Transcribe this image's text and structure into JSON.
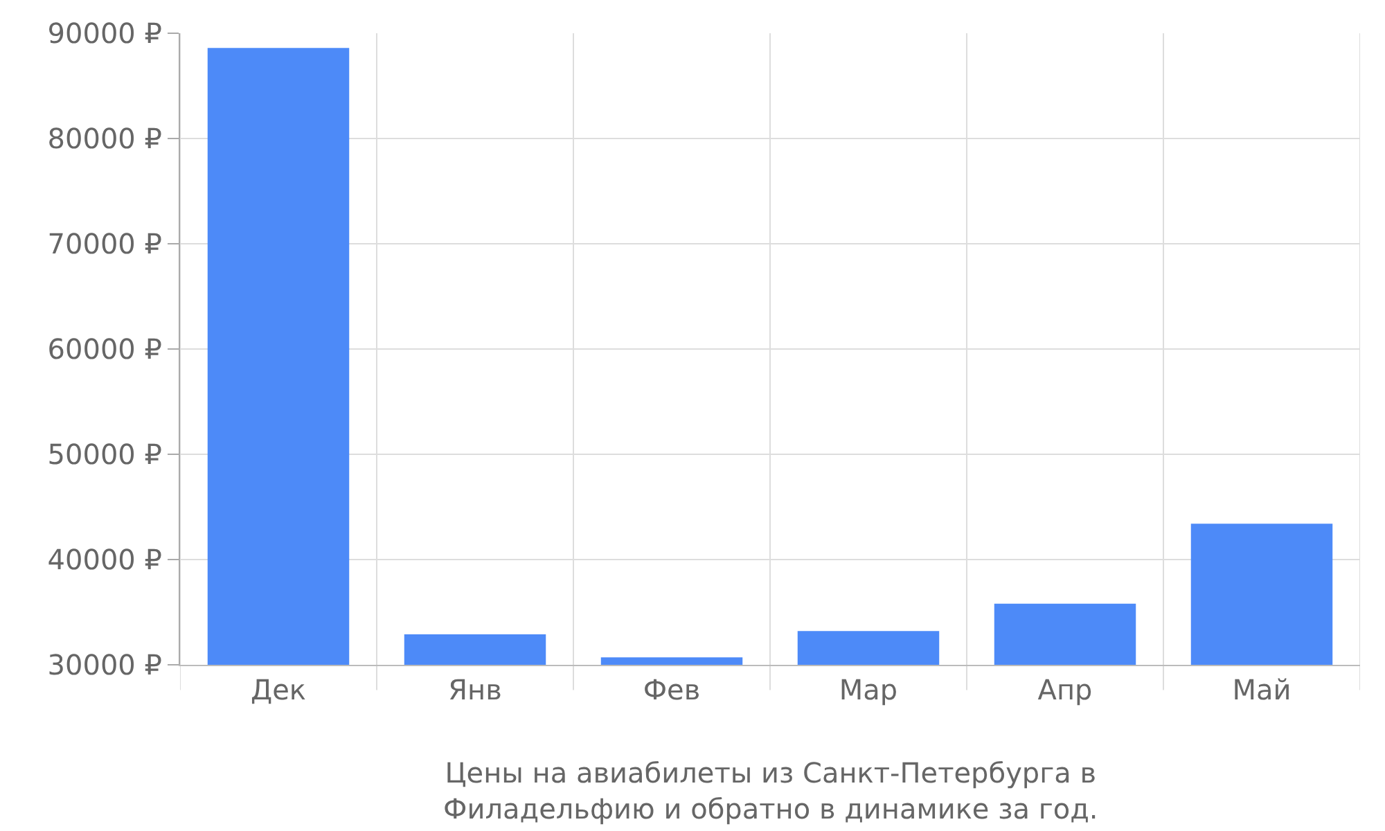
{
  "chart_data": {
    "type": "bar",
    "annotations": [
      "Цены на авиабилеты из Санкт-Петербурга в Филадельфию и обратно в динамике за год."
    ],
    "categories": [
      "Дек",
      "Янв",
      "Фев",
      "Мар",
      "Апр",
      "Май"
    ],
    "values": [
      88600,
      32900,
      30700,
      33200,
      35800,
      43400
    ],
    "color": "#4d8af8",
    "ylim": [
      30000,
      90000
    ],
    "yticks": [
      {
        "value": 30000,
        "label": "30000 ₽"
      },
      {
        "value": 40000,
        "label": "40000 ₽"
      },
      {
        "value": 50000,
        "label": "50000 ₽"
      },
      {
        "value": 60000,
        "label": "60000 ₽"
      },
      {
        "value": 70000,
        "label": "70000 ₽"
      },
      {
        "value": 80000,
        "label": "80000 ₽"
      },
      {
        "value": 90000,
        "label": "90000 ₽"
      }
    ],
    "grid": true
  }
}
